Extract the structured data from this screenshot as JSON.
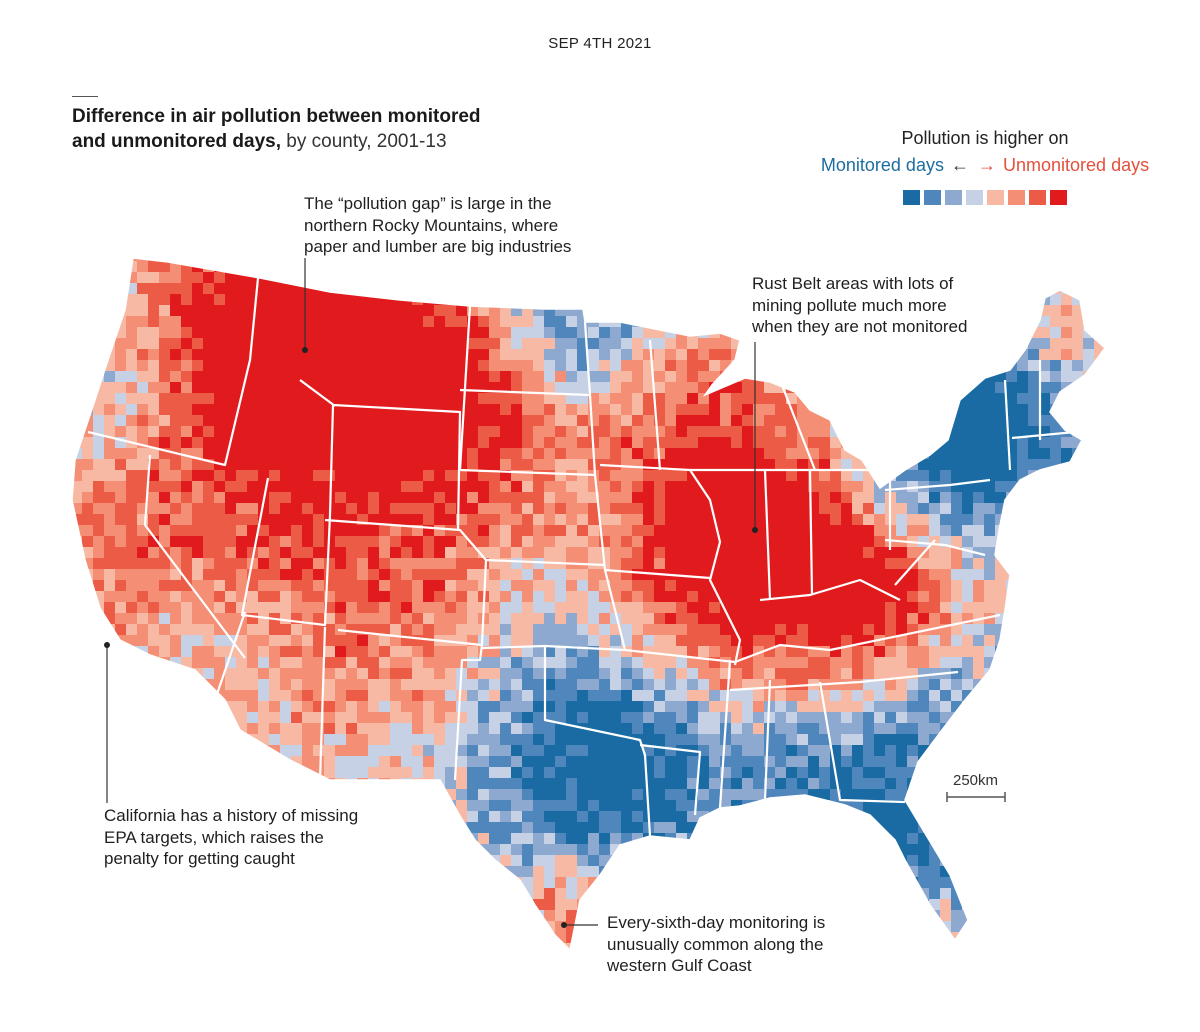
{
  "header": {
    "date": "SEP 4TH 2021",
    "title_bold": "Difference in air pollution between monitored and unmonitored days,",
    "title_light": " by county, 2001-13"
  },
  "legend": {
    "heading": "Pollution is higher on",
    "left_label": "Monitored days",
    "right_label": "Unmonitored days",
    "left_arrow": "←",
    "right_arrow": "→",
    "colors": [
      "#1a6ba3",
      "#4f86bb",
      "#8ea9cf",
      "#c6d1e6",
      "#f7b9a3",
      "#f48f75",
      "#ec5b45",
      "#e11b1d"
    ]
  },
  "annotations": {
    "rockies": [
      "The “pollution gap” is large in the",
      "northern Rocky Mountains, where",
      "paper and lumber are big industries"
    ],
    "rustbelt": [
      "Rust Belt areas with lots of",
      "mining pollute much more",
      "when they are not monitored"
    ],
    "california": [
      "California has a history of missing",
      "EPA targets, which raises the",
      "penalty for getting caught"
    ],
    "gulf": [
      "Every-sixth-day monitoring is",
      "unusually common along the",
      "western Gulf Coast"
    ]
  },
  "scale": {
    "label": "250km"
  }
}
